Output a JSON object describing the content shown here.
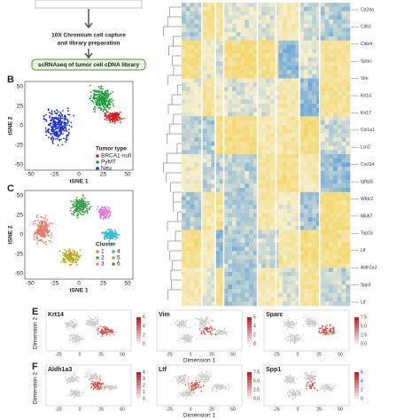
{
  "workflow": {
    "step_lines": [
      "10X Chromium cell capture",
      "and library preparation"
    ],
    "result": "scRNAseq of tumor cell cDNA library"
  },
  "panel_b": {
    "label": "B",
    "y_axis": "tSNE 2",
    "x_axis": "tSNE 1",
    "x_ticks": [
      "-50",
      "-25",
      "0",
      "25",
      "50"
    ],
    "y_ticks": [
      "50",
      "25",
      "0",
      "-25",
      "-50"
    ],
    "legend_title": "Tumor type",
    "legend": [
      "BRCA1-null",
      "PyMT",
      "Neu"
    ]
  },
  "panel_c": {
    "label": "C",
    "y_axis": "tSNE 2",
    "x_axis": "tSNE 1",
    "x_ticks": [
      "-50",
      "-25",
      "0",
      "25",
      "50"
    ],
    "y_ticks": [
      "50",
      "25",
      "0",
      "-25",
      "-50"
    ],
    "legend_title": "Cluster",
    "legend": [
      "1",
      "4",
      "2",
      "5",
      "3",
      "6"
    ]
  },
  "heatmap": {
    "genes": [
      "Cd24a",
      "Cdh1",
      "Cldn4",
      "Sparc",
      "Vim",
      "Krt14",
      "Krt17",
      "Col1a1",
      "Lcn2",
      "Cxcl14",
      "Igfbp5",
      "Wfdc2",
      "Mki67",
      "Top2a",
      "Ltf",
      "Aldh1a3",
      "Spp1",
      "Lif"
    ]
  },
  "expression": {
    "y_axis": "Dimension 2",
    "x_axis": "Dimension 1",
    "dim_ticks": [
      "-25",
      "0",
      "25",
      "50"
    ],
    "rows": [
      {
        "label": "E",
        "plots": [
          {
            "gene": "Krt14",
            "scale": [
              "6",
              "4",
              "2",
              "0"
            ]
          },
          {
            "gene": "Vim",
            "scale": [
              "6",
              "4",
              "2",
              "0"
            ]
          },
          {
            "gene": "Sparc",
            "scale": [
              "7.5",
              "5.0",
              "2.5",
              "0.0"
            ]
          }
        ]
      },
      {
        "label": "F",
        "plots": [
          {
            "gene": "Aldh1a3",
            "scale": [
              "4",
              "3",
              "2",
              "1",
              "0"
            ]
          },
          {
            "gene": "Ltf",
            "scale": [
              "7.5",
              "5.0",
              "2.5",
              "0.0"
            ]
          },
          {
            "gene": "Spp1",
            "scale": [
              "6",
              "4",
              "2",
              "0"
            ]
          }
        ]
      }
    ]
  }
}
